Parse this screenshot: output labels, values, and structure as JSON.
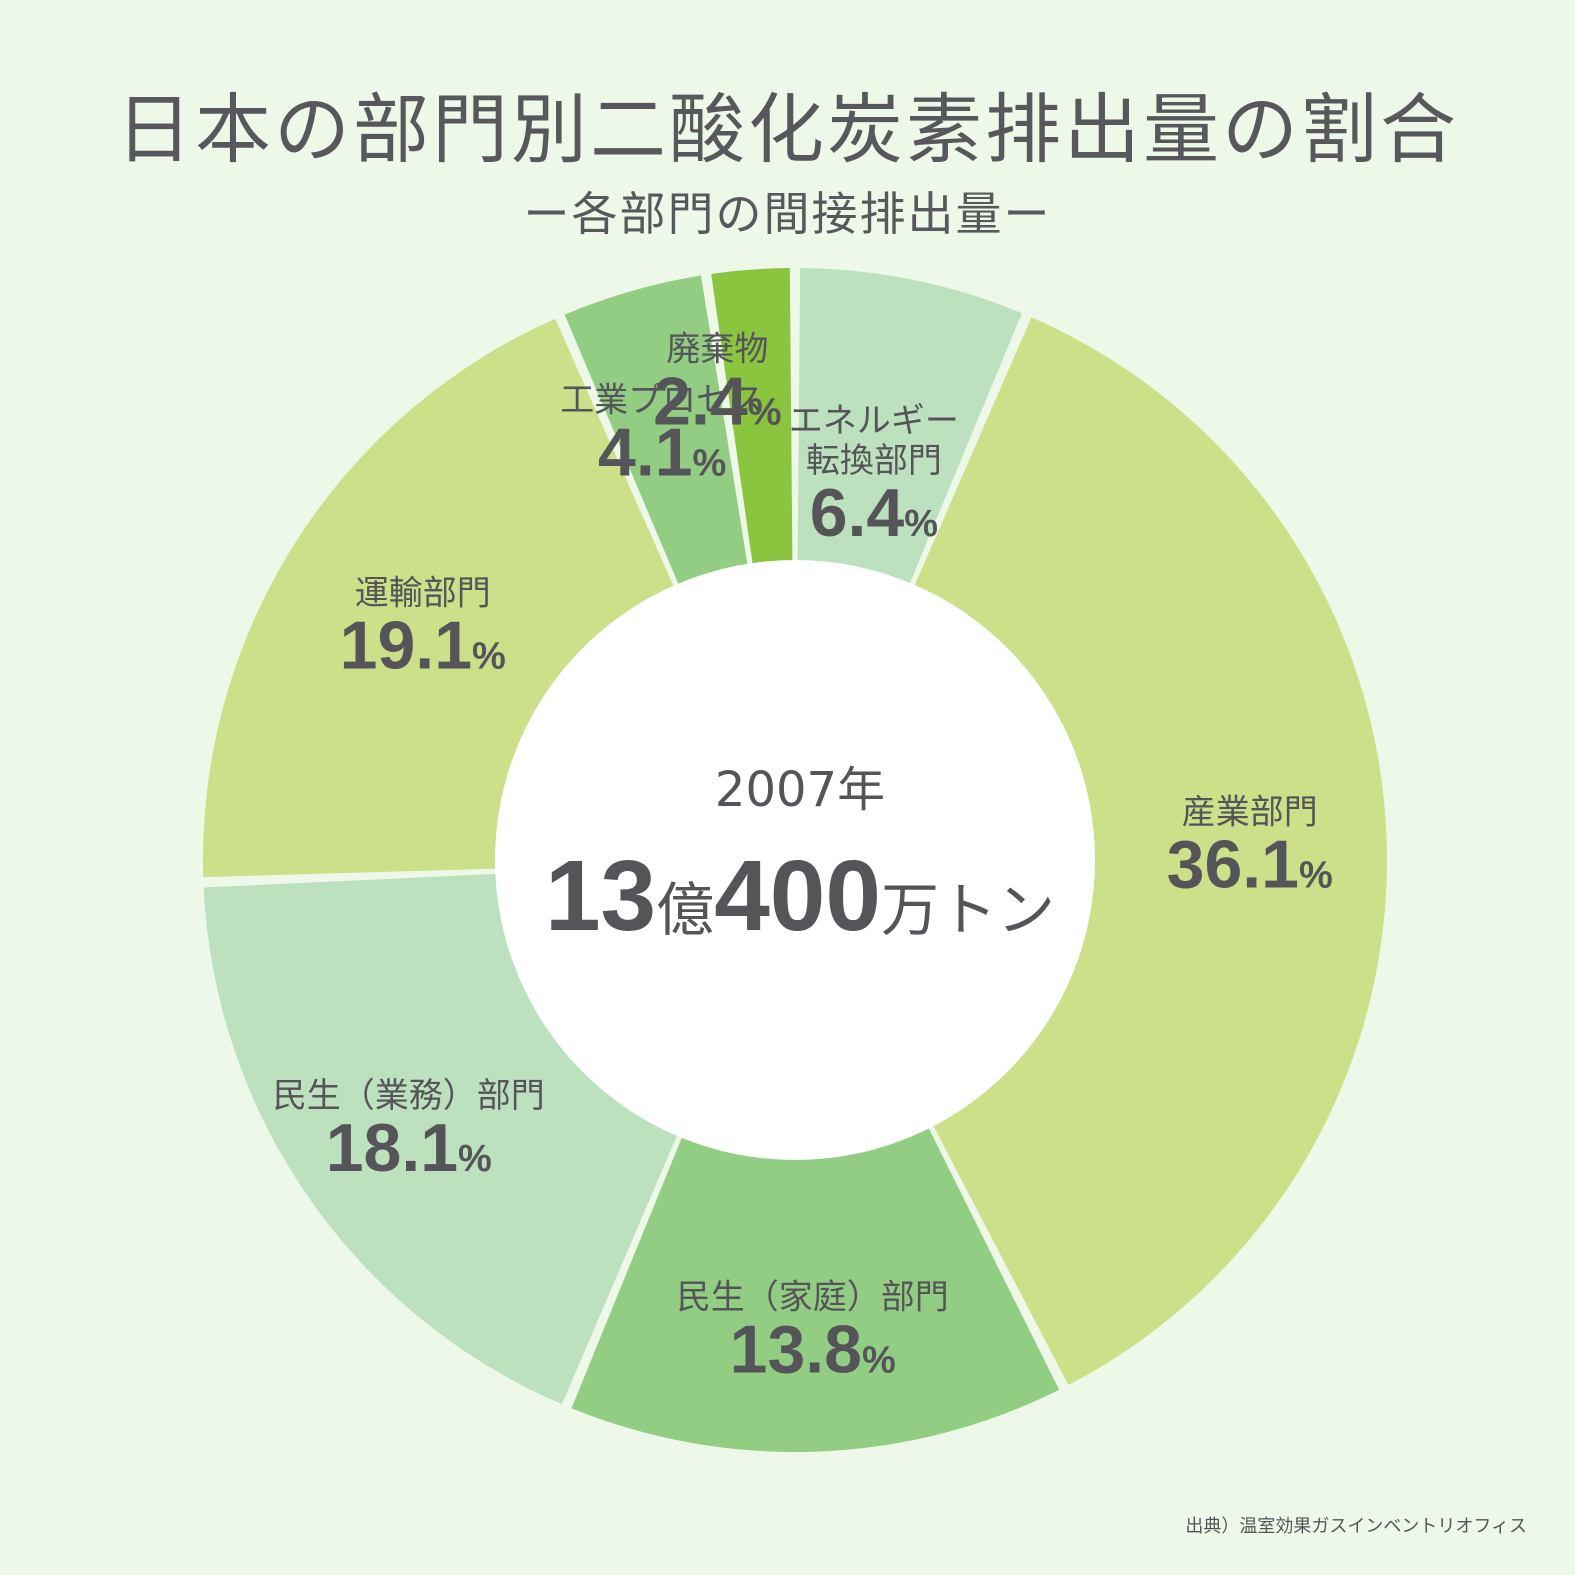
{
  "title": "日本の部門別二酸化炭素排出量の割合",
  "subtitle": "ー各部門の間接排出量ー",
  "center": {
    "year_label": "2007年",
    "total_num1": "13",
    "total_unit1": "億",
    "total_num2": "400",
    "total_unit2": "万トン"
  },
  "source": "出典）温室効果ガスインベントリオフィス",
  "colors": {
    "background": "#eef8e8",
    "hole": "#ffffff",
    "text": "#555559"
  },
  "chart_data": {
    "type": "pie",
    "donut": true,
    "unit": "%",
    "slices": [
      {
        "label": [
          "エネルギー",
          "転換部門"
        ],
        "value": 6.4,
        "display": "6.4",
        "color": "#bde1bf"
      },
      {
        "label": [
          "産業部門"
        ],
        "value": 36.1,
        "display": "36.1",
        "color": "#cbe089"
      },
      {
        "label": [
          "民生（家庭）部門"
        ],
        "value": 13.8,
        "display": "13.8",
        "color": "#93cd84"
      },
      {
        "label": [
          "民生（業務）部門"
        ],
        "value": 18.1,
        "display": "18.1",
        "color": "#bde1bf"
      },
      {
        "label": [
          "運輸部門"
        ],
        "value": 19.1,
        "display": "19.1",
        "color": "#cbe089"
      },
      {
        "label": [
          "工業プロセス"
        ],
        "value": 4.1,
        "display": "4.1",
        "color": "#93cd84"
      },
      {
        "label": [
          "廃棄物"
        ],
        "value": 2.4,
        "display": "2.4",
        "color": "#8bc43f"
      }
    ]
  }
}
